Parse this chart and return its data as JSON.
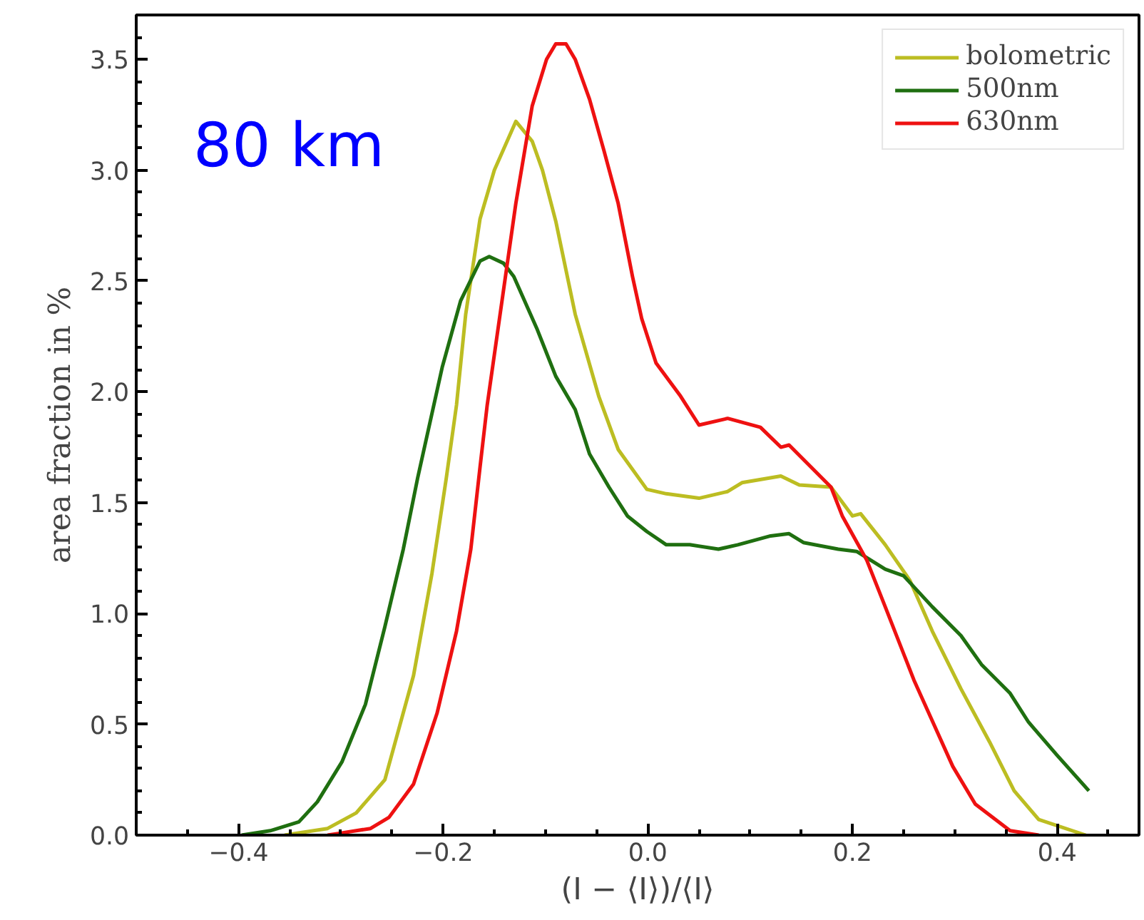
{
  "chart_data": {
    "type": "line",
    "xlabel": "(I − ⟨I⟩)/⟨I⟩",
    "ylabel": "area fraction in %",
    "annotations": [
      "80 km"
    ],
    "xlim": [
      -0.5,
      0.48
    ],
    "ylim": [
      0,
      3.7
    ],
    "xticks": [
      {
        "value": -0.4,
        "label": "−0.4"
      },
      {
        "value": -0.2,
        "label": "−0.2"
      },
      {
        "value": 0,
        "label": "0.0"
      },
      {
        "value": 0.2,
        "label": "0.2"
      },
      {
        "value": 0.4,
        "label": "0.4"
      }
    ],
    "yticks": [
      {
        "value": 0,
        "label": "0.0"
      },
      {
        "value": 0.5,
        "label": "0.5"
      },
      {
        "value": 1,
        "label": "1.0"
      },
      {
        "value": 1.5,
        "label": "1.5"
      },
      {
        "value": 2,
        "label": "2.0"
      },
      {
        "value": 2.5,
        "label": "2.5"
      },
      {
        "value": 3,
        "label": "3.0"
      },
      {
        "value": 3.5,
        "label": "3.5"
      }
    ],
    "grid": false,
    "legend": "top right",
    "marker": "none",
    "line_style": "solid",
    "series": [
      {
        "name": "bolometric",
        "color": "#bcbd22",
        "x": [
          -0.355,
          -0.313,
          -0.285,
          -0.257,
          -0.229,
          -0.211,
          -0.197,
          -0.187,
          -0.178,
          -0.164,
          -0.15,
          -0.129,
          -0.113,
          -0.103,
          -0.09,
          -0.071,
          -0.048,
          -0.029,
          -0.001,
          0.018,
          0.05,
          0.078,
          0.092,
          0.13,
          0.148,
          0.179,
          0.2,
          0.208,
          0.232,
          0.256,
          0.278,
          0.306,
          0.334,
          0.358,
          0.382,
          0.428
        ],
        "values": [
          0,
          0.03,
          0.1,
          0.25,
          0.72,
          1.18,
          1.61,
          1.94,
          2.35,
          2.78,
          3.0,
          3.22,
          3.13,
          3.0,
          2.77,
          2.35,
          1.98,
          1.74,
          1.56,
          1.54,
          1.52,
          1.55,
          1.59,
          1.62,
          1.58,
          1.57,
          1.44,
          1.45,
          1.31,
          1.15,
          0.92,
          0.66,
          0.42,
          0.2,
          0.07,
          0
        ]
      },
      {
        "name": "500nm",
        "color": "#1f6f10",
        "x": [
          -0.397,
          -0.369,
          -0.341,
          -0.323,
          -0.299,
          -0.276,
          -0.257,
          -0.239,
          -0.225,
          -0.201,
          -0.183,
          -0.164,
          -0.155,
          -0.141,
          -0.131,
          -0.108,
          -0.09,
          -0.071,
          -0.057,
          -0.038,
          -0.02,
          -0.001,
          0.018,
          0.041,
          0.069,
          0.088,
          0.12,
          0.138,
          0.152,
          0.186,
          0.204,
          0.232,
          0.25,
          0.278,
          0.306,
          0.326,
          0.354,
          0.372,
          0.4,
          0.431
        ],
        "values": [
          0,
          0.02,
          0.06,
          0.15,
          0.33,
          0.59,
          0.94,
          1.29,
          1.61,
          2.11,
          2.41,
          2.59,
          2.61,
          2.58,
          2.52,
          2.28,
          2.07,
          1.92,
          1.72,
          1.57,
          1.44,
          1.37,
          1.31,
          1.31,
          1.29,
          1.31,
          1.35,
          1.36,
          1.32,
          1.29,
          1.28,
          1.2,
          1.17,
          1.03,
          0.9,
          0.77,
          0.64,
          0.51,
          0.36,
          0.2
        ]
      },
      {
        "name": "630nm",
        "color": "#ee1111",
        "x": [
          -0.313,
          -0.299,
          -0.271,
          -0.253,
          -0.229,
          -0.206,
          -0.187,
          -0.173,
          -0.164,
          -0.157,
          -0.141,
          -0.129,
          -0.113,
          -0.099,
          -0.09,
          -0.08,
          -0.071,
          -0.057,
          -0.043,
          -0.029,
          -0.015,
          -0.006,
          0.008,
          0.032,
          0.05,
          0.078,
          0.11,
          0.13,
          0.138,
          0.179,
          0.19,
          0.214,
          0.232,
          0.26,
          0.298,
          0.32,
          0.354,
          0.382
        ],
        "values": [
          0,
          0.01,
          0.03,
          0.08,
          0.23,
          0.55,
          0.92,
          1.29,
          1.66,
          1.94,
          2.46,
          2.85,
          3.29,
          3.5,
          3.57,
          3.57,
          3.5,
          3.32,
          3.09,
          2.85,
          2.52,
          2.33,
          2.13,
          1.98,
          1.85,
          1.88,
          1.84,
          1.75,
          1.76,
          1.57,
          1.44,
          1.24,
          1.03,
          0.7,
          0.31,
          0.14,
          0.02,
          0
        ]
      }
    ]
  }
}
